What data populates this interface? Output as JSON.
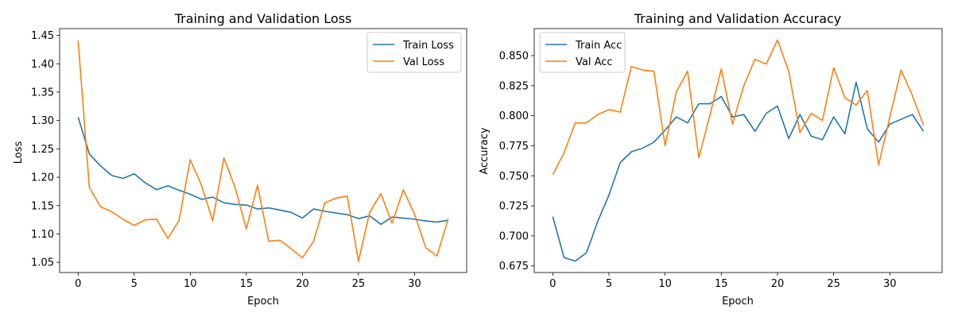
{
  "chart_data": [
    {
      "type": "line",
      "title": "Training and Validation Loss",
      "xlabel": "Epoch",
      "ylabel": "Loss",
      "xlim": [
        -1.65,
        34.65
      ],
      "ylim": [
        1.032,
        1.462
      ],
      "xticks": [
        0,
        5,
        10,
        15,
        20,
        25,
        30
      ],
      "yticks": [
        1.05,
        1.1,
        1.15,
        1.2,
        1.25,
        1.3,
        1.35,
        1.4,
        1.45
      ],
      "ytick_decimals": 2,
      "grid": false,
      "legend_position": "top-right",
      "series": [
        {
          "name": "Train Loss",
          "color": "#1f77b4",
          "values": [
            1.306,
            1.241,
            1.22,
            1.203,
            1.198,
            1.206,
            1.19,
            1.178,
            1.185,
            1.177,
            1.17,
            1.161,
            1.165,
            1.155,
            1.152,
            1.151,
            1.144,
            1.146,
            1.142,
            1.138,
            1.128,
            1.144,
            1.14,
            1.137,
            1.134,
            1.127,
            1.132,
            1.117,
            1.13,
            1.128,
            1.126,
            1.123,
            1.121,
            1.124
          ]
        },
        {
          "name": "Val Loss",
          "color": "#ff7f0e",
          "values": [
            1.441,
            1.182,
            1.148,
            1.139,
            1.126,
            1.115,
            1.125,
            1.126,
            1.092,
            1.124,
            1.231,
            1.186,
            1.123,
            1.234,
            1.182,
            1.109,
            1.186,
            1.087,
            1.089,
            1.074,
            1.058,
            1.087,
            1.155,
            1.163,
            1.167,
            1.052,
            1.138,
            1.171,
            1.119,
            1.178,
            1.135,
            1.076,
            1.061,
            1.127
          ]
        }
      ]
    },
    {
      "type": "line",
      "title": "Training and Validation Accuracy",
      "xlabel": "Epoch",
      "ylabel": "Accuracy",
      "xlim": [
        -1.65,
        34.65
      ],
      "ylim": [
        0.6695,
        0.8725
      ],
      "xticks": [
        0,
        5,
        10,
        15,
        20,
        25,
        30
      ],
      "yticks": [
        0.675,
        0.7,
        0.725,
        0.75,
        0.775,
        0.8,
        0.825,
        0.85
      ],
      "ytick_decimals": 3,
      "grid": false,
      "legend_position": "top-left",
      "series": [
        {
          "name": "Train Acc",
          "color": "#1f77b4",
          "values": [
            0.716,
            0.682,
            0.679,
            0.686,
            0.712,
            0.734,
            0.761,
            0.77,
            0.773,
            0.778,
            0.788,
            0.799,
            0.794,
            0.81,
            0.81,
            0.816,
            0.799,
            0.801,
            0.787,
            0.802,
            0.808,
            0.781,
            0.801,
            0.783,
            0.78,
            0.799,
            0.785,
            0.828,
            0.789,
            0.778,
            0.793,
            0.797,
            0.801,
            0.787
          ]
        },
        {
          "name": "Val Acc",
          "color": "#ff7f0e",
          "values": [
            0.751,
            0.769,
            0.794,
            0.794,
            0.801,
            0.805,
            0.803,
            0.841,
            0.838,
            0.837,
            0.775,
            0.82,
            0.837,
            0.765,
            0.801,
            0.839,
            0.793,
            0.825,
            0.847,
            0.843,
            0.863,
            0.837,
            0.786,
            0.802,
            0.796,
            0.84,
            0.815,
            0.809,
            0.821,
            0.759,
            0.799,
            0.838,
            0.817,
            0.792
          ]
        }
      ]
    }
  ]
}
